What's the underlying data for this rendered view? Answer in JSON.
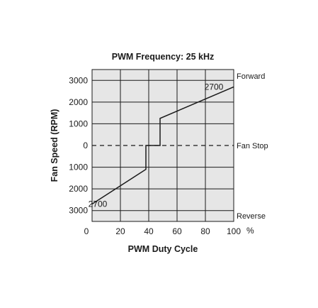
{
  "chart_data": {
    "type": "line",
    "title": "PWM Frequency: 25 kHz",
    "xlabel": "PWM Duty Cycle",
    "ylabel": "Fan Speed (RPM)",
    "xlim": [
      0,
      100
    ],
    "ylim": [
      -3500,
      3500
    ],
    "grid": true,
    "x_ticks": [
      0,
      20,
      40,
      60,
      80,
      100
    ],
    "x_tick_labels": [
      "0",
      "20",
      "40",
      "60",
      "80",
      "100"
    ],
    "x_unit_label": "%",
    "y_ticks": [
      3000,
      2000,
      1000,
      0,
      -1000,
      -2000,
      -3000
    ],
    "y_tick_labels": [
      "3000",
      "2000",
      "1000",
      "0",
      "1000",
      "2000",
      "3000"
    ],
    "right_labels": {
      "top": "Forward",
      "middle": "Fan Stop",
      "bottom": "Reverse"
    },
    "series": [
      {
        "points": [
          {
            "x": 0,
            "y": -2700
          },
          {
            "x": 38,
            "y": -1100
          },
          {
            "x": 38,
            "y": 0
          },
          {
            "x": 48,
            "y": 0
          },
          {
            "x": 48,
            "y": 1250
          },
          {
            "x": 100,
            "y": 2700
          }
        ]
      }
    ],
    "reference_lines": [
      {
        "y": 0,
        "style": "dashed"
      }
    ],
    "annotations": [
      {
        "text": "2700",
        "x": 86,
        "y": 2700
      },
      {
        "text": "2700",
        "x": 4,
        "y": -2700
      }
    ]
  }
}
